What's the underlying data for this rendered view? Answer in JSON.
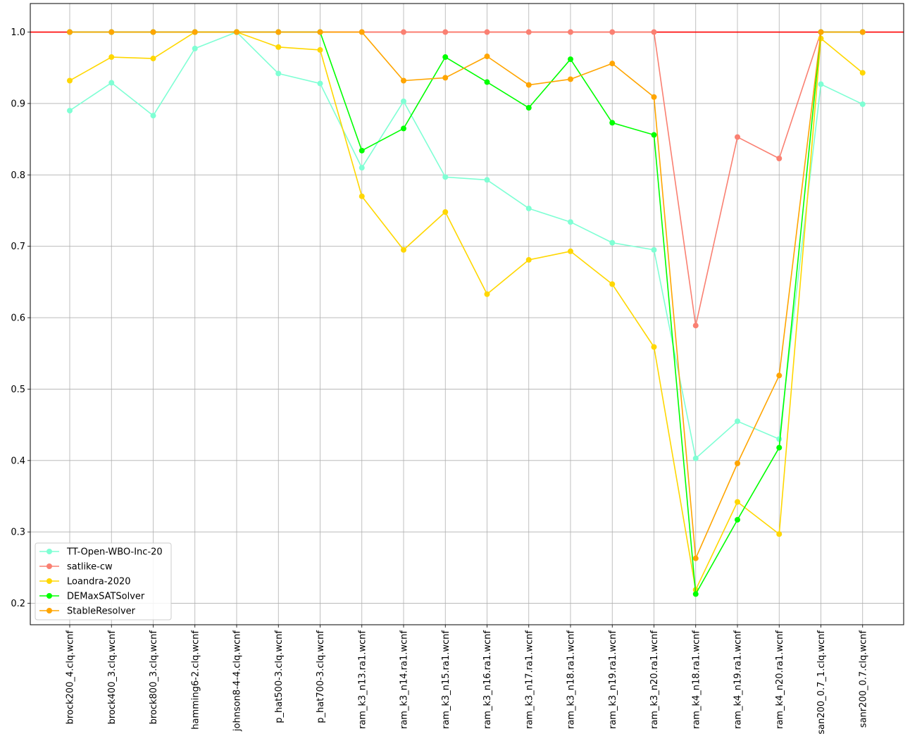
{
  "chart_data": {
    "type": "line",
    "title": "",
    "xlabel": "",
    "ylabel": "",
    "ylim": [
      0.17,
      1.04
    ],
    "yticks": [
      0.2,
      0.3,
      0.4,
      0.5,
      0.6,
      0.7,
      0.8,
      0.9,
      1.0
    ],
    "ytick_labels": [
      "0.2",
      "0.3",
      "0.4",
      "0.5",
      "0.6",
      "0.7",
      "0.8",
      "0.9",
      "1.0"
    ],
    "grid": true,
    "legend_position": "lower-left",
    "reference_line": {
      "value": 1.0,
      "color": "#ff0000"
    },
    "categories": [
      "brock200_4.clq.wcnf",
      "brock400_3.clq.wcnf",
      "brock800_3.clq.wcnf",
      "hamming6-2.clq.wcnf",
      "johnson8-4-4.clq.wcnf",
      "p_hat500-3.clq.wcnf",
      "p_hat700-3.clq.wcnf",
      "ram_k3_n13.ra1.wcnf",
      "ram_k3_n14.ra1.wcnf",
      "ram_k3_n15.ra1.wcnf",
      "ram_k3_n16.ra1.wcnf",
      "ram_k3_n17.ra1.wcnf",
      "ram_k3_n18.ra1.wcnf",
      "ram_k3_n19.ra1.wcnf",
      "ram_k3_n20.ra1.wcnf",
      "ram_k4_n18.ra1.wcnf",
      "ram_k4_n19.ra1.wcnf",
      "ram_k4_n20.ra1.wcnf",
      "san200_0.7_1.clq.wcnf",
      "sanr200_0.7.clq.wcnf"
    ],
    "series": [
      {
        "name": "TT-Open-WBO-Inc-20",
        "color": "#7fffd4",
        "values": [
          0.89,
          0.929,
          0.883,
          0.977,
          1.0,
          0.942,
          0.928,
          0.81,
          0.903,
          0.797,
          0.793,
          0.753,
          0.734,
          0.705,
          0.695,
          0.403,
          0.455,
          0.43,
          0.927,
          0.899
        ]
      },
      {
        "name": "satlike-cw",
        "color": "#fa8072",
        "values": [
          1.0,
          1.0,
          1.0,
          1.0,
          1.0,
          1.0,
          1.0,
          1.0,
          1.0,
          1.0,
          1.0,
          1.0,
          1.0,
          1.0,
          1.0,
          0.589,
          0.853,
          0.823,
          1.0,
          1.0
        ]
      },
      {
        "name": "Loandra-2020",
        "color": "#ffd700",
        "values": [
          0.932,
          0.965,
          0.963,
          1.0,
          1.0,
          0.979,
          0.975,
          0.77,
          0.695,
          0.748,
          0.633,
          0.681,
          0.693,
          0.647,
          0.559,
          0.219,
          0.342,
          0.297,
          0.991,
          0.943
        ]
      },
      {
        "name": "DEMaxSATSolver",
        "color": "#00ff00",
        "values": [
          1.0,
          1.0,
          1.0,
          1.0,
          1.0,
          1.0,
          1.0,
          0.834,
          0.865,
          0.965,
          0.93,
          0.894,
          0.962,
          0.873,
          0.856,
          0.213,
          0.317,
          0.418,
          1.0,
          1.0
        ]
      },
      {
        "name": "StableResolver",
        "color": "#ffa500",
        "values": [
          1.0,
          1.0,
          1.0,
          1.0,
          1.0,
          1.0,
          1.0,
          1.0,
          0.932,
          0.936,
          0.966,
          0.926,
          0.934,
          0.956,
          0.909,
          0.263,
          0.396,
          0.519,
          1.0,
          1.0
        ]
      }
    ]
  }
}
